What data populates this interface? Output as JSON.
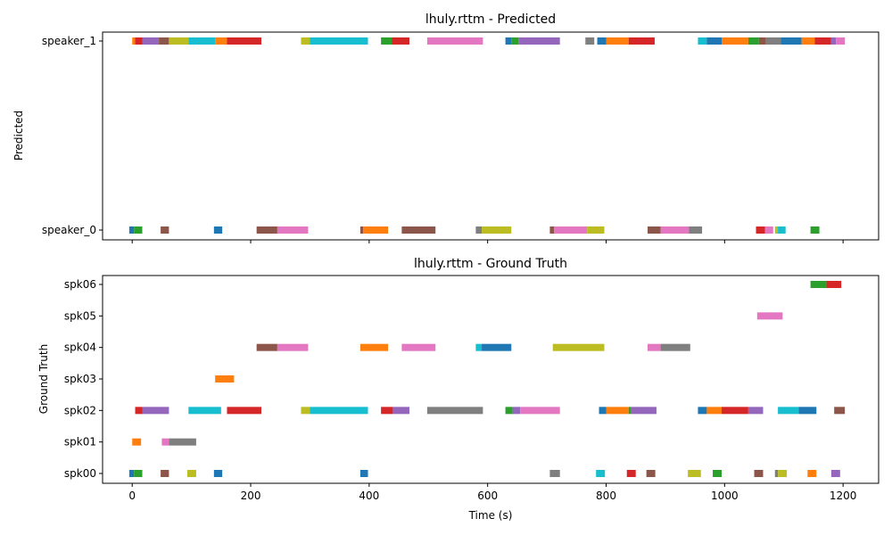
{
  "palette": [
    "#1f77b4",
    "#ff7f0e",
    "#2ca02c",
    "#d62728",
    "#9467bd",
    "#8c564b",
    "#e377c2",
    "#7f7f7f",
    "#bcbd22",
    "#17becf"
  ],
  "chart_data": [
    {
      "type": "timeline",
      "title": "lhuly.rttm - Predicted",
      "xlabel": "",
      "ylabel": "Predicted",
      "xlim": [
        -50,
        1260
      ],
      "xticks": [
        0,
        200,
        400,
        600,
        800,
        1000,
        1200
      ],
      "show_xtick_labels": false,
      "grid": false,
      "categories": [
        "speaker_0",
        "speaker_1"
      ],
      "segments": [
        {
          "row": "speaker_1",
          "start": 0,
          "end": 5,
          "c": 1
        },
        {
          "row": "speaker_1",
          "start": 5,
          "end": 17,
          "c": 3
        },
        {
          "row": "speaker_1",
          "start": 17,
          "end": 45,
          "c": 4
        },
        {
          "row": "speaker_1",
          "start": 45,
          "end": 62,
          "c": 5
        },
        {
          "row": "speaker_1",
          "start": 62,
          "end": 95,
          "c": 8
        },
        {
          "row": "speaker_1",
          "start": 95,
          "end": 140,
          "c": 9
        },
        {
          "row": "speaker_1",
          "start": 140,
          "end": 160,
          "c": 1
        },
        {
          "row": "speaker_1",
          "start": 160,
          "end": 218,
          "c": 3
        },
        {
          "row": "speaker_1",
          "start": 285,
          "end": 300,
          "c": 8
        },
        {
          "row": "speaker_1",
          "start": 300,
          "end": 398,
          "c": 9
        },
        {
          "row": "speaker_1",
          "start": 420,
          "end": 438,
          "c": 2
        },
        {
          "row": "speaker_1",
          "start": 438,
          "end": 468,
          "c": 3
        },
        {
          "row": "speaker_1",
          "start": 498,
          "end": 592,
          "c": 6
        },
        {
          "row": "speaker_1",
          "start": 630,
          "end": 640,
          "c": 0
        },
        {
          "row": "speaker_1",
          "start": 640,
          "end": 652,
          "c": 2
        },
        {
          "row": "speaker_1",
          "start": 652,
          "end": 722,
          "c": 4
        },
        {
          "row": "speaker_1",
          "start": 765,
          "end": 780,
          "c": 7
        },
        {
          "row": "speaker_1",
          "start": 785,
          "end": 800,
          "c": 0
        },
        {
          "row": "speaker_1",
          "start": 800,
          "end": 838,
          "c": 1
        },
        {
          "row": "speaker_1",
          "start": 838,
          "end": 882,
          "c": 3
        },
        {
          "row": "speaker_1",
          "start": 955,
          "end": 970,
          "c": 9
        },
        {
          "row": "speaker_1",
          "start": 970,
          "end": 995,
          "c": 0
        },
        {
          "row": "speaker_1",
          "start": 995,
          "end": 1040,
          "c": 1
        },
        {
          "row": "speaker_1",
          "start": 1040,
          "end": 1058,
          "c": 2
        },
        {
          "row": "speaker_1",
          "start": 1058,
          "end": 1070,
          "c": 5
        },
        {
          "row": "speaker_1",
          "start": 1070,
          "end": 1095,
          "c": 7
        },
        {
          "row": "speaker_1",
          "start": 1095,
          "end": 1130,
          "c": 0
        },
        {
          "row": "speaker_1",
          "start": 1130,
          "end": 1152,
          "c": 1
        },
        {
          "row": "speaker_1",
          "start": 1152,
          "end": 1180,
          "c": 3
        },
        {
          "row": "speaker_1",
          "start": 1180,
          "end": 1188,
          "c": 4
        },
        {
          "row": "speaker_1",
          "start": 1188,
          "end": 1203,
          "c": 6
        },
        {
          "row": "speaker_0",
          "start": -5,
          "end": 3,
          "c": 0
        },
        {
          "row": "speaker_0",
          "start": 3,
          "end": 17,
          "c": 2
        },
        {
          "row": "speaker_0",
          "start": 48,
          "end": 62,
          "c": 5
        },
        {
          "row": "speaker_0",
          "start": 138,
          "end": 152,
          "c": 0
        },
        {
          "row": "speaker_0",
          "start": 210,
          "end": 245,
          "c": 5
        },
        {
          "row": "speaker_0",
          "start": 245,
          "end": 297,
          "c": 6
        },
        {
          "row": "speaker_0",
          "start": 385,
          "end": 390,
          "c": 5
        },
        {
          "row": "speaker_0",
          "start": 390,
          "end": 432,
          "c": 1
        },
        {
          "row": "speaker_0",
          "start": 455,
          "end": 512,
          "c": 5
        },
        {
          "row": "speaker_0",
          "start": 580,
          "end": 590,
          "c": 7
        },
        {
          "row": "speaker_0",
          "start": 590,
          "end": 640,
          "c": 8
        },
        {
          "row": "speaker_0",
          "start": 705,
          "end": 712,
          "c": 5
        },
        {
          "row": "speaker_0",
          "start": 712,
          "end": 768,
          "c": 6
        },
        {
          "row": "speaker_0",
          "start": 768,
          "end": 797,
          "c": 8
        },
        {
          "row": "speaker_0",
          "start": 870,
          "end": 892,
          "c": 5
        },
        {
          "row": "speaker_0",
          "start": 892,
          "end": 940,
          "c": 6
        },
        {
          "row": "speaker_0",
          "start": 940,
          "end": 962,
          "c": 7
        },
        {
          "row": "speaker_0",
          "start": 1053,
          "end": 1068,
          "c": 3
        },
        {
          "row": "speaker_0",
          "start": 1068,
          "end": 1082,
          "c": 6
        },
        {
          "row": "speaker_0",
          "start": 1085,
          "end": 1090,
          "c": 8
        },
        {
          "row": "speaker_0",
          "start": 1090,
          "end": 1103,
          "c": 9
        },
        {
          "row": "speaker_0",
          "start": 1145,
          "end": 1160,
          "c": 2
        }
      ]
    },
    {
      "type": "timeline",
      "title": "lhuly.rttm - Ground Truth",
      "xlabel": "Time (s)",
      "ylabel": "Ground Truth",
      "xlim": [
        -50,
        1260
      ],
      "xticks": [
        0,
        200,
        400,
        600,
        800,
        1000,
        1200
      ],
      "show_xtick_labels": true,
      "grid": false,
      "categories": [
        "spk00",
        "spk01",
        "spk02",
        "spk03",
        "spk04",
        "spk05",
        "spk06"
      ],
      "segments": [
        {
          "row": "spk06",
          "start": 1145,
          "end": 1172,
          "c": 2
        },
        {
          "row": "spk06",
          "start": 1172,
          "end": 1197,
          "c": 3
        },
        {
          "row": "spk05",
          "start": 1055,
          "end": 1098,
          "c": 6
        },
        {
          "row": "spk04",
          "start": 210,
          "end": 245,
          "c": 5
        },
        {
          "row": "spk04",
          "start": 245,
          "end": 297,
          "c": 6
        },
        {
          "row": "spk04",
          "start": 385,
          "end": 432,
          "c": 1
        },
        {
          "row": "spk04",
          "start": 455,
          "end": 512,
          "c": 6
        },
        {
          "row": "spk04",
          "start": 580,
          "end": 590,
          "c": 9
        },
        {
          "row": "spk04",
          "start": 590,
          "end": 640,
          "c": 0
        },
        {
          "row": "spk04",
          "start": 710,
          "end": 797,
          "c": 8
        },
        {
          "row": "spk04",
          "start": 870,
          "end": 892,
          "c": 6
        },
        {
          "row": "spk04",
          "start": 892,
          "end": 942,
          "c": 7
        },
        {
          "row": "spk03",
          "start": 140,
          "end": 172,
          "c": 1
        },
        {
          "row": "spk02",
          "start": 5,
          "end": 17,
          "c": 3
        },
        {
          "row": "spk02",
          "start": 17,
          "end": 62,
          "c": 4
        },
        {
          "row": "spk02",
          "start": 95,
          "end": 150,
          "c": 9
        },
        {
          "row": "spk02",
          "start": 160,
          "end": 218,
          "c": 3
        },
        {
          "row": "spk02",
          "start": 285,
          "end": 300,
          "c": 8
        },
        {
          "row": "spk02",
          "start": 300,
          "end": 398,
          "c": 9
        },
        {
          "row": "spk02",
          "start": 420,
          "end": 440,
          "c": 3
        },
        {
          "row": "spk02",
          "start": 440,
          "end": 468,
          "c": 4
        },
        {
          "row": "spk02",
          "start": 498,
          "end": 592,
          "c": 7
        },
        {
          "row": "spk02",
          "start": 630,
          "end": 642,
          "c": 2
        },
        {
          "row": "spk02",
          "start": 642,
          "end": 655,
          "c": 4
        },
        {
          "row": "spk02",
          "start": 655,
          "end": 722,
          "c": 6
        },
        {
          "row": "spk02",
          "start": 788,
          "end": 800,
          "c": 0
        },
        {
          "row": "spk02",
          "start": 800,
          "end": 838,
          "c": 1
        },
        {
          "row": "spk02",
          "start": 838,
          "end": 842,
          "c": 2
        },
        {
          "row": "spk02",
          "start": 842,
          "end": 885,
          "c": 4
        },
        {
          "row": "spk02",
          "start": 955,
          "end": 970,
          "c": 0
        },
        {
          "row": "spk02",
          "start": 970,
          "end": 995,
          "c": 1
        },
        {
          "row": "spk02",
          "start": 995,
          "end": 1040,
          "c": 3
        },
        {
          "row": "spk02",
          "start": 1040,
          "end": 1065,
          "c": 4
        },
        {
          "row": "spk02",
          "start": 1090,
          "end": 1125,
          "c": 9
        },
        {
          "row": "spk02",
          "start": 1125,
          "end": 1155,
          "c": 0
        },
        {
          "row": "spk02",
          "start": 1185,
          "end": 1203,
          "c": 5
        },
        {
          "row": "spk01",
          "start": 0,
          "end": 15,
          "c": 1
        },
        {
          "row": "spk01",
          "start": 50,
          "end": 62,
          "c": 6
        },
        {
          "row": "spk01",
          "start": 62,
          "end": 108,
          "c": 7
        },
        {
          "row": "spk00",
          "start": -5,
          "end": 3,
          "c": 0
        },
        {
          "row": "spk00",
          "start": 3,
          "end": 17,
          "c": 2
        },
        {
          "row": "spk00",
          "start": 48,
          "end": 62,
          "c": 5
        },
        {
          "row": "spk00",
          "start": 93,
          "end": 108,
          "c": 8
        },
        {
          "row": "spk00",
          "start": 138,
          "end": 152,
          "c": 0
        },
        {
          "row": "spk00",
          "start": 385,
          "end": 398,
          "c": 0
        },
        {
          "row": "spk00",
          "start": 705,
          "end": 722,
          "c": 7
        },
        {
          "row": "spk00",
          "start": 783,
          "end": 798,
          "c": 9
        },
        {
          "row": "spk00",
          "start": 835,
          "end": 850,
          "c": 3
        },
        {
          "row": "spk00",
          "start": 868,
          "end": 883,
          "c": 5
        },
        {
          "row": "spk00",
          "start": 938,
          "end": 960,
          "c": 8
        },
        {
          "row": "spk00",
          "start": 980,
          "end": 995,
          "c": 2
        },
        {
          "row": "spk00",
          "start": 1050,
          "end": 1065,
          "c": 5
        },
        {
          "row": "spk00",
          "start": 1085,
          "end": 1090,
          "c": 7
        },
        {
          "row": "spk00",
          "start": 1090,
          "end": 1105,
          "c": 8
        },
        {
          "row": "spk00",
          "start": 1140,
          "end": 1155,
          "c": 1
        },
        {
          "row": "spk00",
          "start": 1180,
          "end": 1195,
          "c": 4
        }
      ]
    }
  ]
}
